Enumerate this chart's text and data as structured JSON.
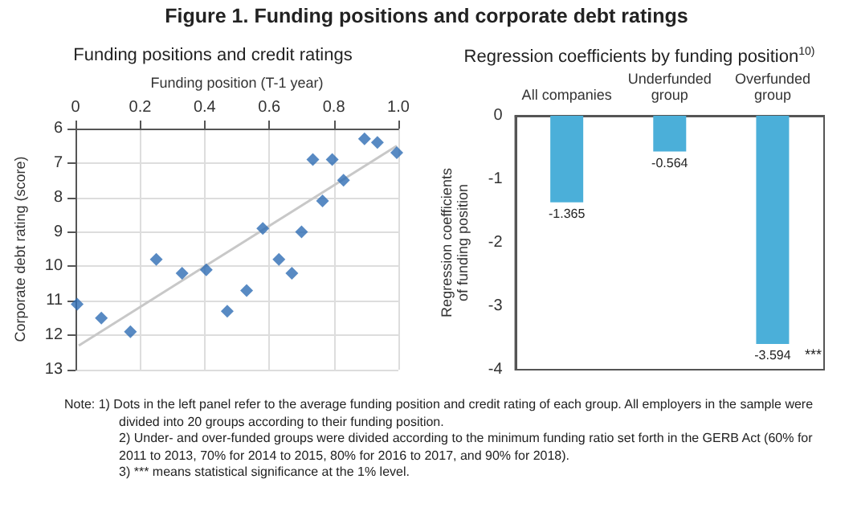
{
  "chart_data": [
    {
      "type": "other",
      "title": "Figure 1. Funding positions and corporate debt ratings",
      "annotations": [
        "Note: 1) Dots in the left panel refer to the average funding position and credit rating of each group. All employers in the sample were divided into 20 groups according to their funding position.",
        "2) Under- and over-funded groups were divided according to the minimum funding ratio set forth in the GERB Act (60% for 2011 to 2013, 70% for 2014 to 2015, 80% for 2016 to 2017, and 90% for 2018).",
        "3) *** means statistical significance at the 1% level."
      ]
    },
    {
      "type": "scatter",
      "title": "Funding positions and credit ratings",
      "xlabel": "Funding position (T-1 year)",
      "ylabel": "Corporate debt rating (score)",
      "xlim": [
        0,
        1
      ],
      "xticks": [
        0,
        0.2,
        0.4,
        0.6,
        0.8,
        {
          "value": 1,
          "label": "1.0"
        }
      ],
      "ylim": [
        13,
        6
      ],
      "yticks": [
        6,
        7,
        8,
        9,
        10,
        11,
        12,
        13
      ],
      "grid": true,
      "marker": "diamond",
      "series": [
        {
          "type": "scatter",
          "color": "#2e6db4",
          "x": [
            0.005,
            0.08,
            0.17,
            0.25,
            0.33,
            0.405,
            0.47,
            0.53,
            0.58,
            0.63,
            0.67,
            0.7,
            0.735,
            0.765,
            0.795,
            0.83,
            0.895,
            0.935,
            0.995
          ],
          "values": [
            11.1,
            11.5,
            11.9,
            9.8,
            10.2,
            10.1,
            11.3,
            10.7,
            8.9,
            9.8,
            10.2,
            9.0,
            6.9,
            8.1,
            6.9,
            7.5,
            6.3,
            6.4,
            6.7
          ]
        },
        {
          "type": "line",
          "color": "#c8c8c8",
          "marker": "none",
          "x": [
            0.01,
            0.995
          ],
          "values": [
            12.3,
            6.5
          ]
        }
      ]
    },
    {
      "type": "bar",
      "title": "Regression coefficients by funding position$^{10)}$",
      "ylabel": "Regression coefficients of funding position",
      "categories": [
        "All companies",
        "Underfunded group",
        "Overfunded group"
      ],
      "values": [
        -1.365,
        -0.564,
        -3.594
      ],
      "color": "#4bafd9",
      "data_labels": true,
      "ylim": [
        -4,
        0
      ],
      "yticks": [
        -4,
        -3,
        -2,
        -1,
        0
      ],
      "annotations": [
        {
          "text": "***",
          "x": "Overfunded group",
          "y": -3.594
        }
      ]
    }
  ]
}
